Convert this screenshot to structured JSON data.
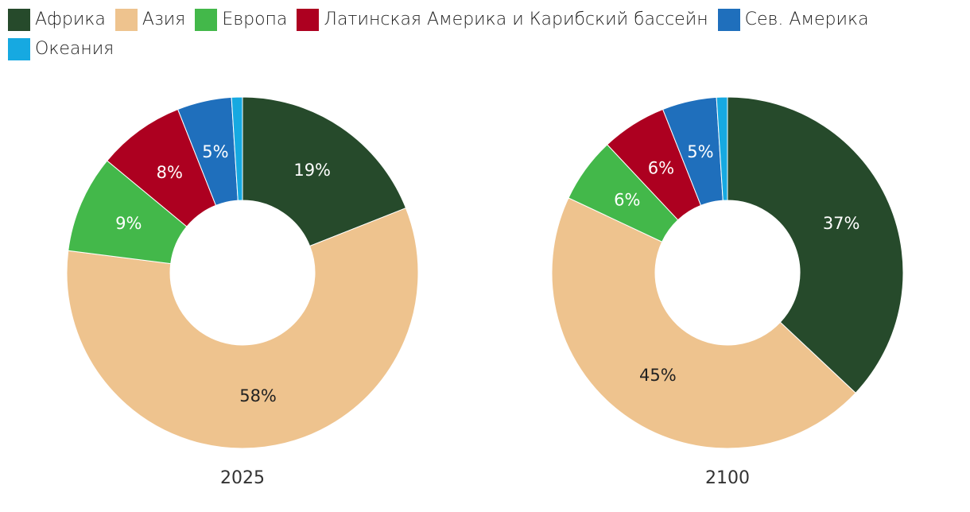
{
  "chart_data": {
    "type": "pie",
    "categories": [
      "Африка",
      "Азия",
      "Европа",
      "Латинская Америка и Карибский бассейн",
      "Сев. Америка",
      "Океания"
    ],
    "colors": [
      "#264a2b",
      "#eec38e",
      "#43b84a",
      "#ad0020",
      "#1f6fbc",
      "#16a9e1"
    ],
    "legend_position": "top-left",
    "charts": [
      {
        "label": "2025",
        "values": [
          19,
          58,
          9,
          8,
          5,
          1
        ],
        "value_labels": [
          "19%",
          "58%",
          "9%",
          "8%",
          "5%",
          ""
        ]
      },
      {
        "label": "2100",
        "values": [
          37,
          45,
          6,
          6,
          5,
          1
        ],
        "value_labels": [
          "37%",
          "45%",
          "6%",
          "6%",
          "5%",
          ""
        ]
      }
    ]
  }
}
